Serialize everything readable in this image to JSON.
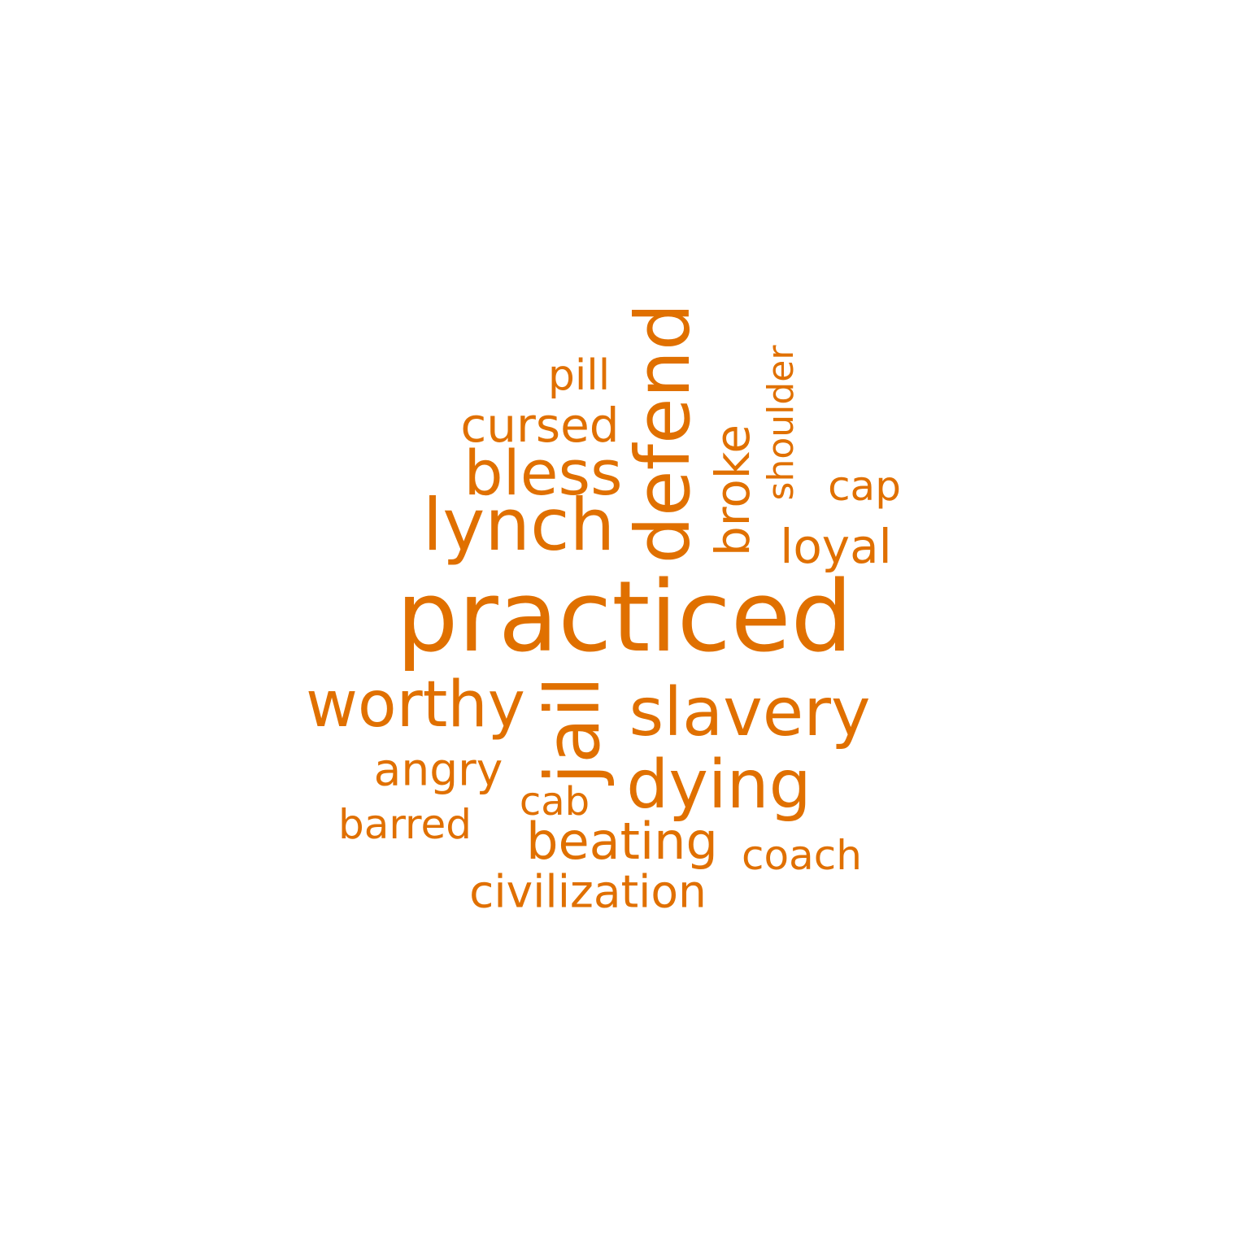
{
  "word_cloud": {
    "color": "#e07000",
    "words": [
      {
        "text": "practiced",
        "orientation": "horizontal"
      },
      {
        "text": "defend",
        "orientation": "vertical"
      },
      {
        "text": "lynch",
        "orientation": "horizontal"
      },
      {
        "text": "jail",
        "orientation": "vertical"
      },
      {
        "text": "slavery",
        "orientation": "horizontal"
      },
      {
        "text": "worthy",
        "orientation": "horizontal"
      },
      {
        "text": "dying",
        "orientation": "horizontal"
      },
      {
        "text": "bless",
        "orientation": "horizontal"
      },
      {
        "text": "beating",
        "orientation": "horizontal"
      },
      {
        "text": "cursed",
        "orientation": "horizontal"
      },
      {
        "text": "broke",
        "orientation": "vertical"
      },
      {
        "text": "loyal",
        "orientation": "horizontal"
      },
      {
        "text": "angry",
        "orientation": "horizontal"
      },
      {
        "text": "civilization",
        "orientation": "horizontal"
      },
      {
        "text": "coach",
        "orientation": "horizontal"
      },
      {
        "text": "barred",
        "orientation": "horizontal"
      },
      {
        "text": "pill",
        "orientation": "horizontal"
      },
      {
        "text": "cap",
        "orientation": "horizontal"
      },
      {
        "text": "cab",
        "orientation": "horizontal"
      },
      {
        "text": "shoulder",
        "orientation": "vertical"
      }
    ]
  }
}
